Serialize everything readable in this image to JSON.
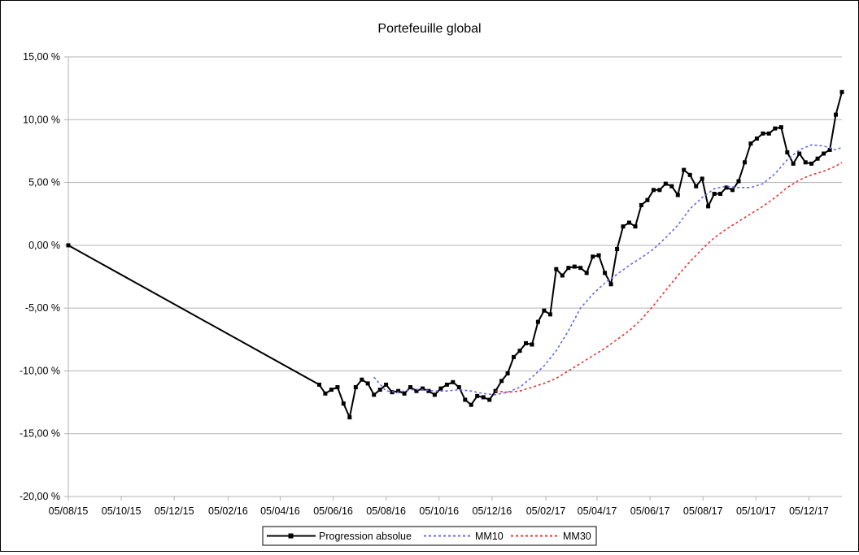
{
  "chart_data": {
    "type": "line",
    "title": "Portefeuille global",
    "xlabel": "",
    "ylabel": "",
    "grid": true,
    "legend_position": "bottom",
    "x_ticks": [
      "05/08/15",
      "05/10/15",
      "05/12/15",
      "05/02/16",
      "05/04/16",
      "05/06/16",
      "05/08/16",
      "05/10/16",
      "05/12/16",
      "05/02/17",
      "05/04/17",
      "05/06/17",
      "05/08/17",
      "05/10/17",
      "05/12/17"
    ],
    "y_ticks": [
      "15,00 %",
      "10,00 %",
      "5,00 %",
      "0,00 %",
      "-5,00 %",
      "-10,00 %",
      "-15,00 %",
      "-20,00 %"
    ],
    "ylim": [
      -20,
      15
    ],
    "series": [
      {
        "name": "Progression absolue",
        "color": "#000000",
        "style": "solid-square-markers",
        "x": [
          "2015-08-05",
          "2016-05-20",
          "2016-05-27",
          "2016-06-03",
          "2016-06-10",
          "2016-06-17",
          "2016-06-24",
          "2016-07-01",
          "2016-07-08",
          "2016-07-15",
          "2016-07-22",
          "2016-07-29",
          "2016-08-05",
          "2016-08-12",
          "2016-08-19",
          "2016-08-26",
          "2016-09-02",
          "2016-09-09",
          "2016-09-16",
          "2016-09-23",
          "2016-09-30",
          "2016-10-07",
          "2016-10-14",
          "2016-10-21",
          "2016-10-28",
          "2016-11-04",
          "2016-11-11",
          "2016-11-18",
          "2016-11-25",
          "2016-12-02",
          "2016-12-09",
          "2016-12-16",
          "2016-12-23",
          "2016-12-30",
          "2017-01-06",
          "2017-01-13",
          "2017-01-20",
          "2017-01-27",
          "2017-02-03",
          "2017-02-10",
          "2017-02-17",
          "2017-02-24",
          "2017-03-03",
          "2017-03-10",
          "2017-03-17",
          "2017-03-24",
          "2017-03-31",
          "2017-04-07",
          "2017-04-14",
          "2017-04-21",
          "2017-04-28",
          "2017-05-05",
          "2017-05-12",
          "2017-05-19",
          "2017-05-26",
          "2017-06-02",
          "2017-06-09",
          "2017-06-16",
          "2017-06-23",
          "2017-06-30",
          "2017-07-07",
          "2017-07-14",
          "2017-07-21",
          "2017-07-28",
          "2017-08-04",
          "2017-08-11",
          "2017-08-18",
          "2017-08-25",
          "2017-09-01",
          "2017-09-08",
          "2017-09-15",
          "2017-09-22",
          "2017-09-29",
          "2017-10-06",
          "2017-10-13",
          "2017-10-20",
          "2017-10-27",
          "2017-11-03",
          "2017-11-10",
          "2017-11-17",
          "2017-11-24",
          "2017-12-01",
          "2017-12-08",
          "2017-12-15",
          "2017-12-22",
          "2017-12-29",
          "2018-01-05",
          "2018-01-12"
        ],
        "y": [
          0,
          -11.1,
          -11.8,
          -11.5,
          -11.3,
          -12.6,
          -13.7,
          -11.3,
          -10.7,
          -11.0,
          -11.9,
          -11.5,
          -11.1,
          -11.7,
          -11.6,
          -11.8,
          -11.3,
          -11.6,
          -11.4,
          -11.6,
          -11.9,
          -11.4,
          -11.1,
          -10.9,
          -11.3,
          -12.3,
          -12.7,
          -12.0,
          -12.1,
          -12.3,
          -11.6,
          -10.8,
          -10.2,
          -8.9,
          -8.4,
          -7.8,
          -7.9,
          -6.1,
          -5.2,
          -5.5,
          -1.9,
          -2.4,
          -1.8,
          -1.7,
          -1.8,
          -2.2,
          -0.9,
          -0.8,
          -2.2,
          -3.1,
          -0.3,
          1.5,
          1.8,
          1.5,
          3.2,
          3.6,
          4.4,
          4.4,
          4.9,
          4.7,
          4.0,
          6.0,
          5.6,
          4.7,
          5.3,
          3.1,
          4.1,
          4.1,
          4.6,
          4.4,
          5.1,
          6.6,
          8.1,
          8.5,
          8.9,
          8.9,
          9.3,
          9.4,
          7.4,
          6.5,
          7.3,
          6.6,
          6.5,
          6.9,
          7.3,
          7.6,
          10.4,
          12.2
        ]
      },
      {
        "name": "MM10",
        "color": "#6666ee",
        "style": "dashed",
        "x": [
          "2016-07-22",
          "2016-08-05",
          "2016-08-19",
          "2016-09-02",
          "2016-09-16",
          "2016-09-30",
          "2016-10-14",
          "2016-10-28",
          "2016-11-11",
          "2016-11-25",
          "2016-12-09",
          "2016-12-23",
          "2017-01-06",
          "2017-01-20",
          "2017-02-03",
          "2017-02-17",
          "2017-03-03",
          "2017-03-17",
          "2017-03-31",
          "2017-04-14",
          "2017-04-28",
          "2017-05-12",
          "2017-05-26",
          "2017-06-09",
          "2017-06-23",
          "2017-07-07",
          "2017-07-21",
          "2017-08-04",
          "2017-08-18",
          "2017-09-01",
          "2017-09-15",
          "2017-09-29",
          "2017-10-13",
          "2017-10-27",
          "2017-11-10",
          "2017-11-24",
          "2017-12-08",
          "2017-12-22",
          "2018-01-05",
          "2018-01-12"
        ],
        "y": [
          -10.5,
          -11.6,
          -11.7,
          -11.5,
          -11.5,
          -11.6,
          -11.6,
          -11.5,
          -11.6,
          -11.8,
          -11.9,
          -11.7,
          -11.3,
          -10.5,
          -9.6,
          -8.4,
          -6.8,
          -5.0,
          -3.9,
          -3.0,
          -2.3,
          -1.6,
          -1.0,
          -0.3,
          0.6,
          1.6,
          2.9,
          3.8,
          4.5,
          4.7,
          4.6,
          4.6,
          4.9,
          5.7,
          6.8,
          7.6,
          8.0,
          7.9,
          7.6,
          7.8
        ]
      },
      {
        "name": "MM30",
        "color": "#ee3333",
        "style": "dashed",
        "x": [
          "2016-12-09",
          "2016-12-23",
          "2017-01-06",
          "2017-01-20",
          "2017-02-03",
          "2017-02-17",
          "2017-03-03",
          "2017-03-17",
          "2017-03-31",
          "2017-04-14",
          "2017-04-28",
          "2017-05-12",
          "2017-05-26",
          "2017-06-09",
          "2017-06-23",
          "2017-07-07",
          "2017-07-21",
          "2017-08-04",
          "2017-08-18",
          "2017-09-01",
          "2017-09-15",
          "2017-09-29",
          "2017-10-13",
          "2017-10-27",
          "2017-11-10",
          "2017-11-24",
          "2017-12-08",
          "2017-12-22",
          "2018-01-05",
          "2018-01-12"
        ],
        "y": [
          -11.6,
          -11.7,
          -11.6,
          -11.3,
          -11.0,
          -10.6,
          -10.0,
          -9.4,
          -8.8,
          -8.2,
          -7.5,
          -6.8,
          -5.9,
          -4.8,
          -3.6,
          -2.4,
          -1.3,
          -0.3,
          0.6,
          1.3,
          1.9,
          2.5,
          3.1,
          3.8,
          4.6,
          5.2,
          5.6,
          5.9,
          6.3,
          6.6
        ]
      }
    ]
  }
}
